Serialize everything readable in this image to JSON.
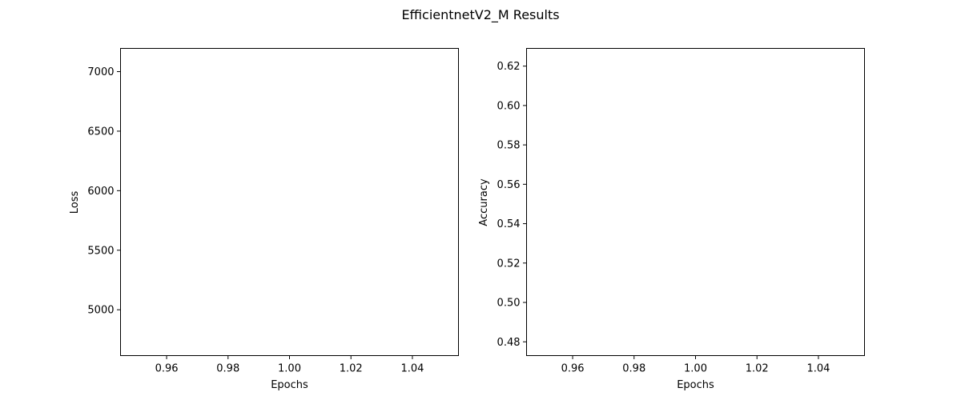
{
  "figure": {
    "title": "EfficientnetV2_M Results"
  },
  "chart_data": [
    {
      "type": "line",
      "xlabel": "Epochs",
      "ylabel": "Loss",
      "xlim": [
        0.945,
        1.055
      ],
      "ylim": [
        4615,
        7195
      ],
      "x_ticks": [
        {
          "value": 0.96,
          "label": "0.96"
        },
        {
          "value": 0.98,
          "label": "0.98"
        },
        {
          "value": 1.0,
          "label": "1.00"
        },
        {
          "value": 1.02,
          "label": "1.02"
        },
        {
          "value": 1.04,
          "label": "1.04"
        }
      ],
      "y_ticks": [
        {
          "value": 5000,
          "label": "5000"
        },
        {
          "value": 5500,
          "label": "5500"
        },
        {
          "value": 6000,
          "label": "6000"
        },
        {
          "value": 6500,
          "label": "6500"
        },
        {
          "value": 7000,
          "label": "7000"
        }
      ],
      "grid": false,
      "series": []
    },
    {
      "type": "line",
      "xlabel": "Epochs",
      "ylabel": "Accuracy",
      "xlim": [
        0.945,
        1.055
      ],
      "ylim": [
        0.473,
        0.629
      ],
      "x_ticks": [
        {
          "value": 0.96,
          "label": "0.96"
        },
        {
          "value": 0.98,
          "label": "0.98"
        },
        {
          "value": 1.0,
          "label": "1.00"
        },
        {
          "value": 1.02,
          "label": "1.02"
        },
        {
          "value": 1.04,
          "label": "1.04"
        }
      ],
      "y_ticks": [
        {
          "value": 0.48,
          "label": "0.48"
        },
        {
          "value": 0.5,
          "label": "0.50"
        },
        {
          "value": 0.52,
          "label": "0.52"
        },
        {
          "value": 0.54,
          "label": "0.54"
        },
        {
          "value": 0.56,
          "label": "0.56"
        },
        {
          "value": 0.58,
          "label": "0.58"
        },
        {
          "value": 0.6,
          "label": "0.60"
        },
        {
          "value": 0.62,
          "label": "0.62"
        }
      ],
      "grid": false,
      "series": []
    }
  ]
}
